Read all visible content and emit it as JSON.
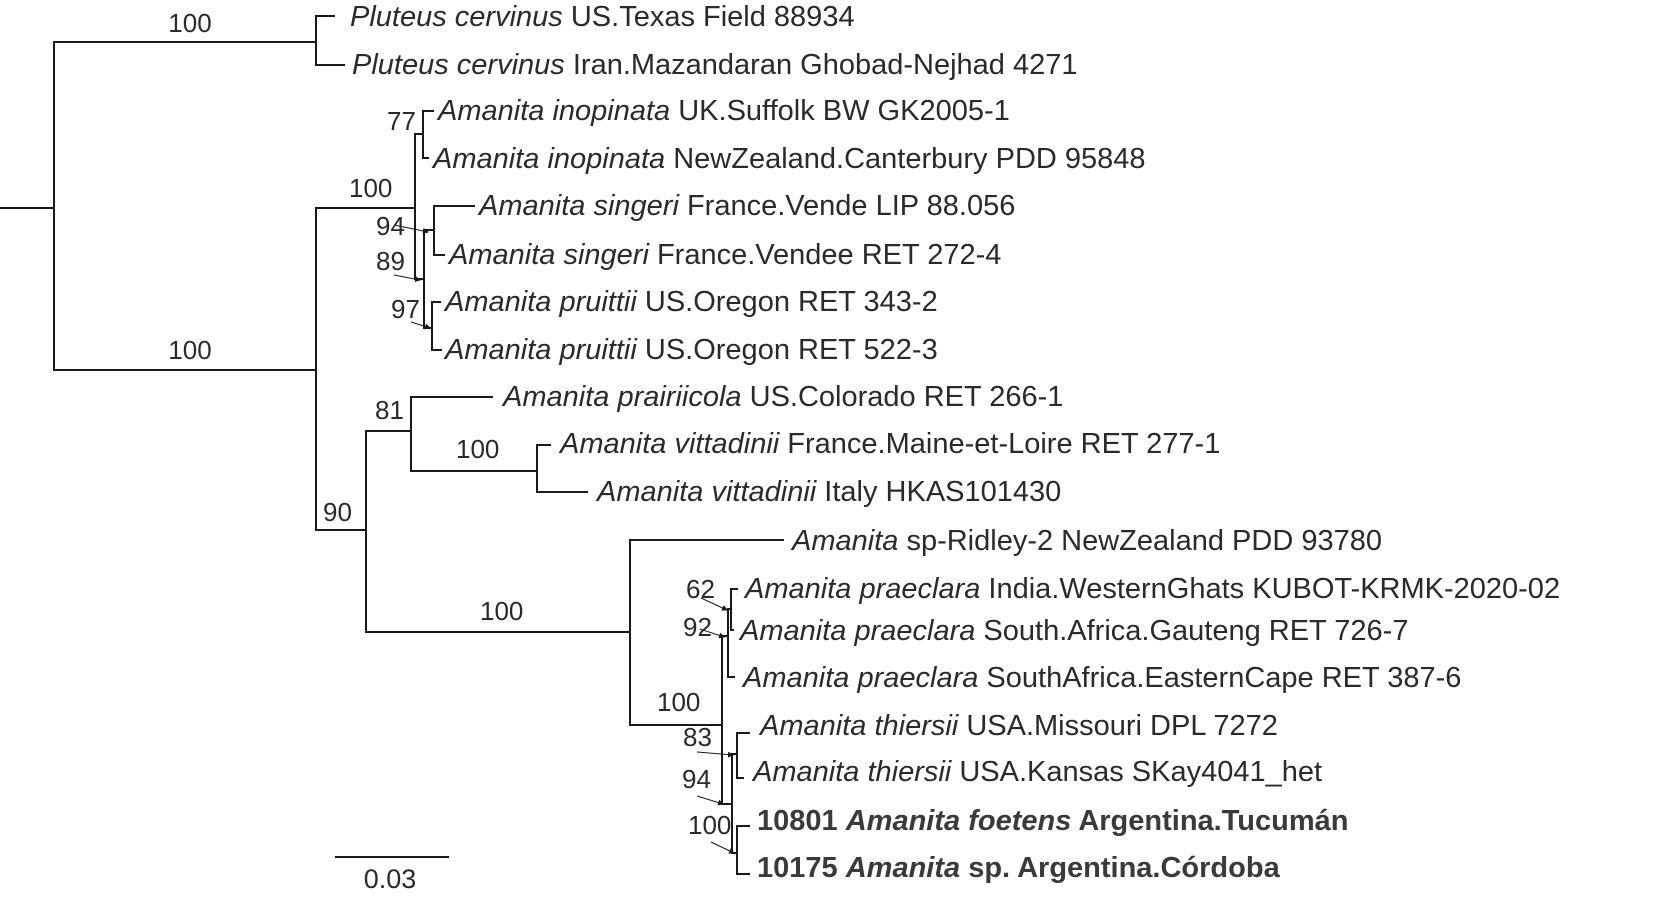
{
  "taxa": [
    {
      "id": "t1",
      "number": "",
      "genus": "Pluteus",
      "epithet": "cervinus",
      "locality": "US.Texas Field 88934",
      "bold": false
    },
    {
      "id": "t2",
      "number": "",
      "genus": "Pluteus",
      "epithet": "cervinus",
      "locality": "Iran.Mazandaran Ghobad-Nejhad 4271",
      "bold": false
    },
    {
      "id": "t3",
      "number": "",
      "genus": "Amanita",
      "epithet": "inopinata",
      "locality": "UK.Suffolk BW GK2005-1",
      "bold": false
    },
    {
      "id": "t4",
      "number": "",
      "genus": "Amanita",
      "epithet": "inopinata",
      "locality": "NewZealand.Canterbury PDD 95848",
      "bold": false
    },
    {
      "id": "t5",
      "number": "",
      "genus": "Amanita",
      "epithet": "singeri",
      "locality": "France.Vende LIP 88.056",
      "bold": false
    },
    {
      "id": "t6",
      "number": "",
      "genus": "Amanita",
      "epithet": "singeri",
      "locality": "France.Vendee RET 272-4",
      "bold": false
    },
    {
      "id": "t7",
      "number": "",
      "genus": "Amanita",
      "epithet": "pruittii",
      "locality": "US.Oregon RET 343-2",
      "bold": false
    },
    {
      "id": "t8",
      "number": "",
      "genus": "Amanita",
      "epithet": "pruittii",
      "locality": "US.Oregon RET 522-3",
      "bold": false
    },
    {
      "id": "t9",
      "number": "",
      "genus": "Amanita",
      "epithet": "prairiicola",
      "locality": "US.Colorado RET 266-1",
      "bold": false
    },
    {
      "id": "t10",
      "number": "",
      "genus": "Amanita",
      "epithet": "vittadinii",
      "locality": "France.Maine-et-Loire RET 277-1",
      "bold": false
    },
    {
      "id": "t11",
      "number": "",
      "genus": "Amanita",
      "epithet": "vittadinii",
      "locality": "Italy HKAS101430",
      "bold": false
    },
    {
      "id": "t12",
      "number": "",
      "genus": "Amanita",
      "epithet": "",
      "locality": "sp-Ridley-2 NewZealand PDD 93780",
      "bold": false
    },
    {
      "id": "t13",
      "number": "",
      "genus": "Amanita",
      "epithet": "praeclara",
      "locality": "India.WesternGhats KUBOT-KRMK-2020-02",
      "bold": false
    },
    {
      "id": "t14",
      "number": "",
      "genus": "Amanita",
      "epithet": "praeclara",
      "locality": "South.Africa.Gauteng RET 726-7",
      "bold": false
    },
    {
      "id": "t15",
      "number": "",
      "genus": "Amanita",
      "epithet": "praeclara",
      "locality": "SouthAfrica.EasternCape RET 387-6",
      "bold": false
    },
    {
      "id": "t16",
      "number": "",
      "genus": "Amanita",
      "epithet": "thiersii",
      "locality": "USA.Missouri DPL 7272",
      "bold": false
    },
    {
      "id": "t17",
      "number": "",
      "genus": "Amanita",
      "epithet": "thiersii",
      "locality": "USA.Kansas SKay4041_het",
      "bold": false
    },
    {
      "id": "t18",
      "number": "10801",
      "genus": "Amanita",
      "epithet": "foetens",
      "locality": "Argentina.Tucumán",
      "bold": true
    },
    {
      "id": "t19",
      "number": "10175",
      "genus": "Amanita",
      "epithet": "",
      "locality": "sp. Argentina.Córdoba",
      "bold": true
    }
  ],
  "support": {
    "s_pluteus": "100",
    "s_amanita": "100",
    "s_inopinata": "77",
    "s_group1": "100",
    "s_singeri": "94",
    "s_sp_group": "89",
    "s_pruittii": "97",
    "s_prairiicola": "81",
    "s_vittadinii": "100",
    "s_group2": "90",
    "s_group3": "100",
    "s_praeclara_ab": "62",
    "s_praeclara": "92",
    "s_group4": "100",
    "s_thiersii": "83",
    "s_thiersii_group": "94",
    "s_argentina": "100"
  },
  "scale_bar": {
    "label": "0.03"
  }
}
